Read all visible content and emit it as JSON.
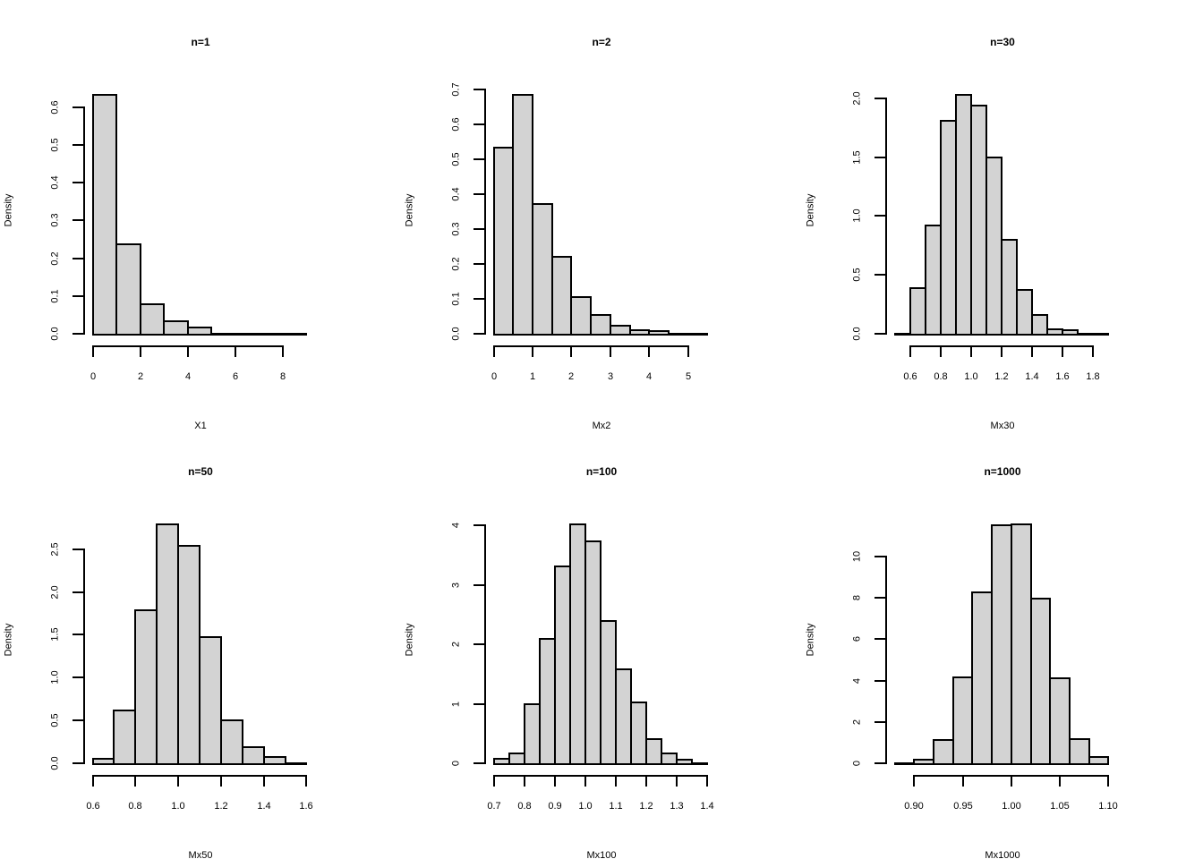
{
  "page": {
    "background": "#ffffff"
  },
  "style": {
    "bar_fill": "#d3d3d3",
    "bar_border": "#000000",
    "text_color": "#000000"
  },
  "chart_data": [
    {
      "type": "bar",
      "subtype": "histogram",
      "title": "n=1",
      "xlabel": "X1",
      "ylabel": "Density",
      "bin_start": 0,
      "bin_width": 1,
      "densities": [
        0.632,
        0.237,
        0.078,
        0.033,
        0.016,
        0.002,
        0.002,
        0.002,
        0.002
      ],
      "xlim": [
        0,
        9
      ],
      "ylim": [
        0,
        0.632
      ],
      "x_ticks": [
        0,
        2,
        4,
        6,
        8
      ],
      "x_tick_labels": [
        "0",
        "2",
        "4",
        "6",
        "8"
      ],
      "y_ticks": [
        0,
        0.1,
        0.2,
        0.3,
        0.4,
        0.5,
        0.6
      ],
      "y_tick_labels": [
        "0.0",
        "0.1",
        "0.2",
        "0.3",
        "0.4",
        "0.5",
        "0.6"
      ],
      "grid": false,
      "legend": false
    },
    {
      "type": "bar",
      "subtype": "histogram",
      "title": "n=2",
      "xlabel": "Mx2",
      "ylabel": "Density",
      "bin_start": 0,
      "bin_width": 0.5,
      "densities": [
        0.533,
        0.685,
        0.372,
        0.22,
        0.105,
        0.054,
        0.022,
        0.011,
        0.007,
        0.003,
        0.002
      ],
      "xlim": [
        0,
        5.5
      ],
      "ylim": [
        0,
        0.685
      ],
      "x_ticks": [
        0,
        1,
        2,
        3,
        4,
        5
      ],
      "x_tick_labels": [
        "0",
        "1",
        "2",
        "3",
        "4",
        "5"
      ],
      "y_ticks": [
        0,
        0.1,
        0.2,
        0.3,
        0.4,
        0.5,
        0.6,
        0.7
      ],
      "y_tick_labels": [
        "0.0",
        "0.1",
        "0.2",
        "0.3",
        "0.4",
        "0.5",
        "0.6",
        "0.7"
      ],
      "grid": false,
      "legend": false
    },
    {
      "type": "bar",
      "subtype": "histogram",
      "title": "n=30",
      "xlabel": "Mx30",
      "ylabel": "Density",
      "bin_start": 0.5,
      "bin_width": 0.1,
      "densities": [
        0.01,
        0.39,
        0.92,
        1.81,
        2.03,
        1.94,
        1.5,
        0.8,
        0.37,
        0.16,
        0.04,
        0.03,
        0.002,
        0.01
      ],
      "xlim": [
        0.5,
        1.9
      ],
      "ylim": [
        0,
        2.03
      ],
      "x_ticks": [
        0.6,
        0.8,
        1.0,
        1.2,
        1.4,
        1.6,
        1.8
      ],
      "x_tick_labels": [
        "0.6",
        "0.8",
        "1.0",
        "1.2",
        "1.4",
        "1.6",
        "1.8"
      ],
      "y_ticks": [
        0,
        0.5,
        1.0,
        1.5,
        2.0
      ],
      "y_tick_labels": [
        "0.0",
        "0.5",
        "1.0",
        "1.5",
        "2.0"
      ],
      "grid": false,
      "legend": false
    },
    {
      "type": "bar",
      "subtype": "histogram",
      "title": "n=50",
      "xlabel": "Mx50",
      "ylabel": "Density",
      "bin_start": 0.6,
      "bin_width": 0.1,
      "densities": [
        0.05,
        0.62,
        1.79,
        2.79,
        2.54,
        1.47,
        0.5,
        0.19,
        0.07,
        0.01
      ],
      "xlim": [
        0.6,
        1.6
      ],
      "ylim": [
        0,
        2.79
      ],
      "x_ticks": [
        0.6,
        0.8,
        1.0,
        1.2,
        1.4,
        1.6
      ],
      "x_tick_labels": [
        "0.6",
        "0.8",
        "1.0",
        "1.2",
        "1.4",
        "1.6"
      ],
      "y_ticks": [
        0,
        0.5,
        1.0,
        1.5,
        2.0,
        2.5
      ],
      "y_tick_labels": [
        "0.0",
        "0.5",
        "1.0",
        "1.5",
        "2.0",
        "2.5"
      ],
      "grid": false,
      "legend": false
    },
    {
      "type": "bar",
      "subtype": "histogram",
      "title": "n=100",
      "xlabel": "Mx100",
      "ylabel": "Density",
      "bin_start": 0.7,
      "bin_width": 0.05,
      "densities": [
        0.07,
        0.16,
        0.99,
        2.1,
        3.31,
        4.02,
        3.73,
        2.4,
        1.58,
        1.03,
        0.41,
        0.16,
        0.06,
        0.02
      ],
      "xlim": [
        0.7,
        1.4
      ],
      "ylim": [
        0,
        4.02
      ],
      "x_ticks": [
        0.7,
        0.8,
        0.9,
        1.0,
        1.1,
        1.2,
        1.3,
        1.4
      ],
      "x_tick_labels": [
        "0.7",
        "0.8",
        "0.9",
        "1.0",
        "1.1",
        "1.2",
        "1.3",
        "1.4"
      ],
      "y_ticks": [
        0,
        1,
        2,
        3,
        4
      ],
      "y_tick_labels": [
        "0",
        "1",
        "2",
        "3",
        "4"
      ],
      "grid": false,
      "legend": false
    },
    {
      "type": "bar",
      "subtype": "histogram",
      "title": "n=1000",
      "xlabel": "Mx1000",
      "ylabel": "Density",
      "bin_start": 0.88,
      "bin_width": 0.02,
      "densities": [
        0.02,
        0.17,
        1.13,
        4.15,
        8.25,
        11.5,
        11.55,
        7.95,
        4.1,
        1.17,
        0.3
      ],
      "xlim": [
        0.88,
        1.1
      ],
      "ylim": [
        0,
        11.55
      ],
      "x_ticks": [
        0.9,
        0.95,
        1.0,
        1.05,
        1.1
      ],
      "x_tick_labels": [
        "0.90",
        "0.95",
        "1.00",
        "1.05",
        "1.10"
      ],
      "y_ticks": [
        0,
        2,
        4,
        6,
        8,
        10
      ],
      "y_tick_labels": [
        "0",
        "2",
        "4",
        "6",
        "8",
        "10"
      ],
      "grid": false,
      "legend": false
    }
  ]
}
